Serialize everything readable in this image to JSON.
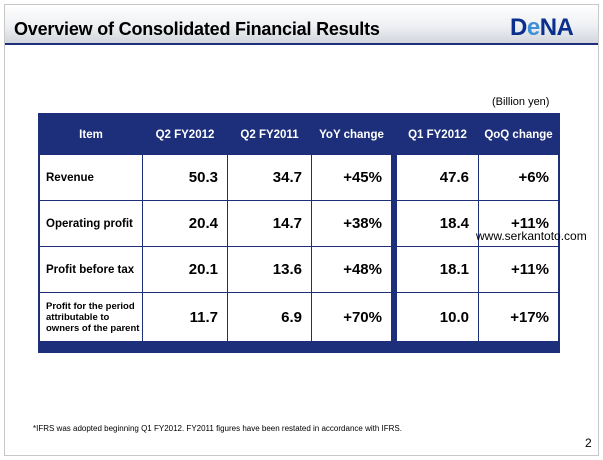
{
  "header": {
    "title": "Overview of Consolidated Financial Results",
    "logo_prefix": "D",
    "logo_e": "e",
    "logo_suffix": "NA"
  },
  "unit_note": "(Billion yen)",
  "table": {
    "columns": [
      "Item",
      "Q2 FY2012",
      "Q2 FY2011",
      "YoY change",
      "Q1 FY2012",
      "QoQ change"
    ],
    "rows": [
      {
        "item": "Revenue",
        "q2fy2012": "50.3",
        "q2fy2011": "34.7",
        "yoy": "+45%",
        "q1fy2012": "47.6",
        "qoq": "+6%"
      },
      {
        "item": "Operating profit",
        "q2fy2012": "20.4",
        "q2fy2011": "14.7",
        "yoy": "+38%",
        "q1fy2012": "18.4",
        "qoq": "+11%"
      },
      {
        "item": "Profit before tax",
        "q2fy2012": "20.1",
        "q2fy2011": "13.6",
        "yoy": "+48%",
        "q1fy2012": "18.1",
        "qoq": "+11%"
      },
      {
        "item": "Profit for the period attributable to owners of the parent",
        "q2fy2012": "11.7",
        "q2fy2011": "6.9",
        "yoy": "+70%",
        "q1fy2012": "10.0",
        "qoq": "+17%"
      }
    ]
  },
  "watermark": "www.serkantoto.com",
  "footnote": "*IFRS was adopted beginning Q1 FY2012. FY2011 figures have been restated in accordance with IFRS.",
  "page_number": "2",
  "colors": {
    "table_header": "#1d2f7a",
    "logo_blue": "#0a2f8c",
    "logo_accent": "#3e8fd8"
  }
}
